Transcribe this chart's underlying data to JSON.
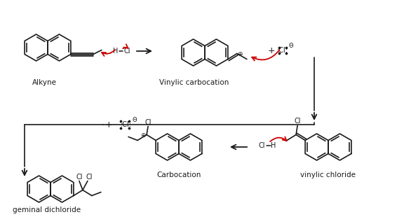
{
  "bg_color": "#ffffff",
  "line_color": "#1a1a1a",
  "arrow_color": "#cc0000",
  "text_color": "#1a1a1a",
  "labels": {
    "alkyne": "Alkyne",
    "vinylic_carbocation": "Vinylic carbocation",
    "carbocation": "Carbocation",
    "vinylic_chloride": "vinylic chloride",
    "geminal_dichloride": "geminal dichloride"
  },
  "figsize": [
    5.76,
    3.1
  ],
  "dpi": 100
}
